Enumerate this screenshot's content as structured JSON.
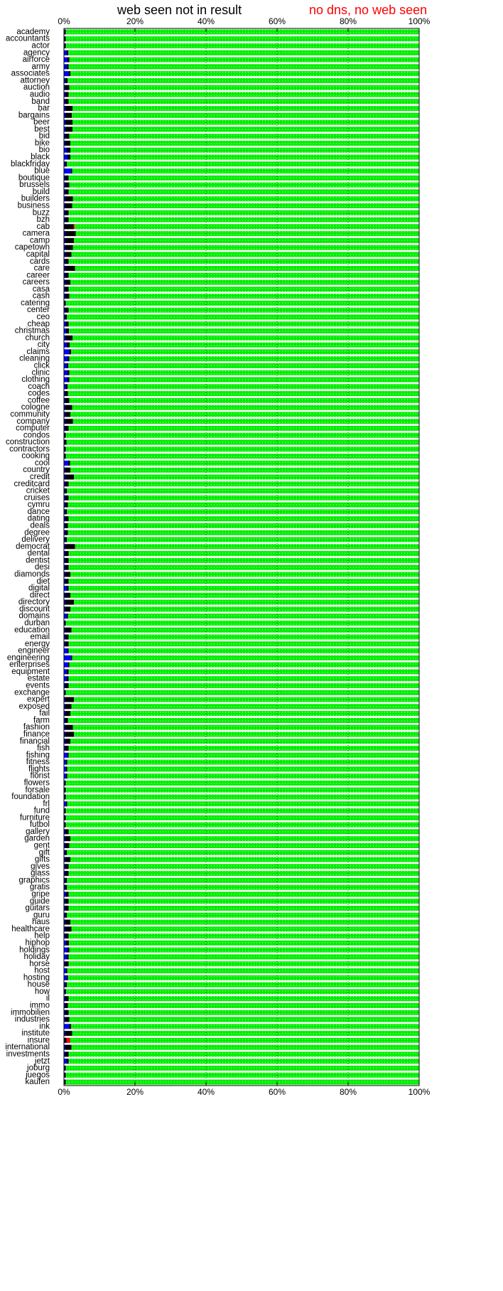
{
  "chart_data": {
    "type": "stacked-barh",
    "categories": [
      "academy",
      "accountants",
      "actor",
      "agency",
      "airforce",
      "army",
      "associates",
      "attorney",
      "auction",
      "audio",
      "band",
      "bar",
      "bargains",
      "beer",
      "best",
      "bid",
      "bike",
      "bio",
      "black",
      "blackfriday",
      "blue",
      "boutique",
      "brussels",
      "build",
      "builders",
      "business",
      "buzz",
      "bzh",
      "cab",
      "camera",
      "camp",
      "capetown",
      "capital",
      "cards",
      "care",
      "career",
      "careers",
      "casa",
      "cash",
      "catering",
      "center",
      "ceo",
      "cheap",
      "christmas",
      "church",
      "city",
      "claims",
      "cleaning",
      "click",
      "clinic",
      "clothing",
      "coach",
      "codes",
      "coffee",
      "cologne",
      "community",
      "company",
      "computer",
      "condos",
      "construction",
      "contractors",
      "cooking",
      "cool",
      "country",
      "credit",
      "creditcard",
      "cricket",
      "cruises",
      "cymru",
      "dance",
      "dating",
      "deals",
      "degree",
      "delivery",
      "democrat",
      "dental",
      "dentist",
      "desi",
      "diamonds",
      "diet",
      "digital",
      "direct",
      "directory",
      "discount",
      "domains",
      "durban",
      "education",
      "email",
      "energy",
      "engineer",
      "engineering",
      "enterprises",
      "equipment",
      "estate",
      "events",
      "exchange",
      "expert",
      "exposed",
      "fail",
      "farm",
      "fashion",
      "finance",
      "financial",
      "fish",
      "fishing",
      "fitness",
      "flights",
      "florist",
      "flowers",
      "forsale",
      "foundation",
      "frl",
      "fund",
      "furniture",
      "futbol",
      "gallery",
      "garden",
      "gent",
      "gift",
      "gifts",
      "gives",
      "glass",
      "graphics",
      "gratis",
      "gripe",
      "guide",
      "guitars",
      "guru",
      "haus",
      "healthcare",
      "help",
      "hiphop",
      "holdings",
      "holiday",
      "horse",
      "host",
      "hosting",
      "house",
      "how",
      "il",
      "immo",
      "immobilien",
      "industries",
      "ink",
      "institute",
      "insure",
      "international",
      "investments",
      "jetzt",
      "joburg",
      "juegos",
      "kaufen"
    ],
    "series": [
      {
        "color": "#0000ff",
        "values": [
          0.2,
          0.2,
          0.2,
          0.8,
          1,
          0.8,
          1.4,
          0.4,
          0.3,
          0.3,
          0.3,
          0.4,
          0.4,
          0.4,
          0.4,
          0.3,
          0.3,
          0.8,
          1,
          0.3,
          2,
          0.3,
          0.3,
          0.3,
          0.3,
          0.3,
          0.3,
          0.3,
          0.2,
          0.3,
          0.3,
          0.3,
          0.3,
          0.3,
          0.3,
          0.3,
          0.3,
          0.3,
          0.3,
          0.2,
          0.3,
          0.3,
          0.5,
          0.6,
          0.4,
          0.8,
          1.5,
          1,
          0.8,
          1,
          1,
          0.5,
          0.3,
          0.3,
          0.3,
          0.3,
          0.3,
          0.3,
          0.2,
          0.2,
          0.2,
          0.2,
          1.2,
          0.3,
          0.3,
          0.3,
          0.3,
          0.3,
          0.3,
          0.3,
          0.3,
          0.3,
          0.3,
          0.3,
          0.3,
          0.3,
          0.3,
          0.3,
          0.3,
          0.3,
          0.8,
          0.3,
          0.3,
          0.3,
          0.8,
          0.2,
          0.3,
          0.3,
          0.3,
          1,
          2,
          1.2,
          0.8,
          0.8,
          0.3,
          0.2,
          0.3,
          0.3,
          0.3,
          0.3,
          0.3,
          0.3,
          0.3,
          0.3,
          1,
          0.6,
          0.6,
          0.6,
          0.2,
          0.2,
          0.2,
          0.6,
          0.2,
          0.2,
          0.2,
          0.3,
          0.3,
          0.3,
          0.3,
          0.3,
          0.3,
          0.3,
          0.3,
          0.3,
          0.5,
          0.3,
          0.3,
          0.3,
          0.3,
          0.3,
          0.3,
          0.6,
          1,
          0.8,
          0.3,
          0.6,
          0.8,
          0.3,
          0.3,
          0.3,
          0.3,
          0.3,
          0.3,
          1.5,
          0.3,
          0.2,
          0.3,
          0.3,
          0.8,
          0.2,
          0.2,
          0.2
        ]
      },
      {
        "name": "web seen not in result",
        "color": "#000000",
        "values": [
          0.3,
          0.3,
          0.3,
          0.4,
          0.5,
          0.5,
          0.4,
          0.6,
          1.2,
          1,
          1,
          2,
          1.8,
          2,
          2,
          1.2,
          1.5,
          1,
          0.8,
          0.5,
          0.3,
          1,
          1.2,
          1,
          2.2,
          2,
          1,
          1,
          2.5,
          3,
          2.5,
          2.2,
          1.8,
          1,
          2.8,
          1,
          1.5,
          1,
          1.2,
          0.3,
          1,
          0.5,
          0.8,
          0.8,
          2,
          0.8,
          0.5,
          0.5,
          0.4,
          0.5,
          0.5,
          0.5,
          0.8,
          1.2,
          2,
          1.5,
          2.2,
          1,
          0.3,
          0.5,
          0.3,
          0.3,
          0.5,
          1.5,
          2.5,
          1,
          0.5,
          1,
          0.8,
          0.5,
          1,
          0.8,
          0.8,
          0.5,
          2.8,
          1,
          1,
          1,
          1.5,
          1,
          0.5,
          1.5,
          2.5,
          1.5,
          0.3,
          0.3,
          1.8,
          1,
          1,
          0.3,
          0.3,
          0.3,
          0.5,
          0.5,
          1,
          0.3,
          2.5,
          1.8,
          1.5,
          0.8,
          2.2,
          2.5,
          1.5,
          1,
          0.3,
          0.3,
          0.3,
          0.3,
          0.3,
          0.3,
          0.3,
          0.3,
          0.3,
          0.3,
          0.3,
          1,
          1.5,
          1.2,
          0.5,
          1.5,
          1,
          1,
          0.5,
          0.5,
          0.8,
          1,
          1,
          0.5,
          1.5,
          1.8,
          1,
          0.8,
          0.5,
          0.5,
          1,
          0.3,
          0.3,
          0.5,
          0.3,
          1,
          0.8,
          1,
          1.2,
          0.5,
          2,
          0.5,
          1.8,
          1,
          0.5,
          0.3,
          0.3,
          0.3
        ]
      },
      {
        "name": "no dns, no web seen",
        "color": "#ff0000",
        "values": [
          0,
          0,
          0,
          0,
          0,
          0,
          0,
          0,
          0,
          0,
          0,
          0,
          0,
          0,
          0,
          0,
          0,
          0,
          0,
          0,
          0,
          0,
          0,
          0,
          0,
          0,
          0,
          0,
          0.3,
          0,
          0,
          0,
          0,
          0,
          0,
          0,
          0,
          0,
          0,
          0,
          0,
          0,
          0,
          0,
          0,
          0,
          0,
          0,
          0,
          0,
          0,
          0,
          0,
          0,
          0,
          0,
          0,
          0,
          0,
          0,
          0,
          0,
          0,
          0,
          0,
          0,
          0,
          0,
          0,
          0,
          0,
          0,
          0,
          0,
          0,
          0,
          0,
          0,
          0,
          0,
          0,
          0,
          0,
          0,
          0,
          0,
          0,
          0,
          0,
          0,
          0,
          0,
          0,
          0,
          0,
          0,
          0,
          0,
          0,
          0,
          0,
          0,
          0,
          0,
          0,
          0,
          0,
          0,
          0,
          0,
          0,
          0,
          0,
          0,
          0,
          0,
          0,
          0,
          0,
          0,
          0,
          0,
          0,
          0,
          0,
          0,
          0,
          0,
          0,
          0,
          0,
          0,
          0,
          0,
          0,
          0,
          0,
          0,
          0,
          0,
          0,
          0,
          0,
          0,
          0,
          1,
          0,
          0,
          0,
          0,
          0,
          0
        ]
      },
      {
        "color": "#00ee00",
        "values": [
          99.5,
          99.5,
          99.5,
          98.8,
          98.5,
          98.7,
          98.2,
          99,
          98.5,
          98.7,
          98.7,
          97.6,
          97.8,
          97.6,
          97.6,
          98.5,
          98.2,
          98.2,
          98.2,
          99.2,
          97.7,
          98.7,
          98.5,
          98.7,
          97.5,
          97.7,
          98.7,
          98.7,
          97,
          96.7,
          97.2,
          97.5,
          97.9,
          98.7,
          96.9,
          98.7,
          98.2,
          98.7,
          98.5,
          99.5,
          98.7,
          99.2,
          98.7,
          98.6,
          97.6,
          98.4,
          98,
          98.5,
          98.8,
          98.5,
          98.5,
          99,
          98.9,
          98.5,
          97.7,
          98.2,
          97.5,
          98.7,
          99.5,
          99.3,
          99.5,
          99.5,
          98.3,
          98.2,
          97.2,
          98.7,
          99.2,
          98.7,
          98.9,
          99.2,
          98.7,
          98.9,
          98.9,
          99.2,
          96.9,
          98.7,
          98.7,
          98.7,
          98.2,
          98.7,
          98.7,
          98.2,
          97.2,
          98.2,
          98.9,
          99.5,
          97.9,
          98.7,
          98.7,
          98.7,
          97.7,
          98.5,
          98.7,
          98.7,
          98.7,
          99.5,
          97.2,
          97.9,
          98.2,
          98.9,
          97.5,
          97.2,
          98.2,
          98.7,
          98.7,
          99.1,
          99.1,
          99.1,
          99.5,
          99.5,
          99.5,
          99.1,
          99.5,
          99.5,
          99.5,
          98.7,
          98.2,
          98.5,
          99.2,
          98.2,
          98.7,
          98.7,
          99.2,
          99.2,
          98.7,
          98.7,
          98.7,
          99.2,
          98.2,
          97.9,
          98.7,
          98.6,
          98.5,
          98.7,
          98.7,
          99.1,
          98.9,
          99.2,
          99.4,
          98.7,
          98.9,
          98.7,
          98.5,
          98,
          97.7,
          98.3,
          97.9,
          98.7,
          98.7,
          99.5,
          99.5,
          99.5
        ]
      }
    ],
    "xlim": [
      0,
      100
    ],
    "xticks": [
      {
        "value": 0,
        "label": "0%"
      },
      {
        "value": 20,
        "label": "20%"
      },
      {
        "value": 40,
        "label": "40%"
      },
      {
        "value": 60,
        "label": "60%"
      },
      {
        "value": 80,
        "label": "80%"
      },
      {
        "value": 100,
        "label": "100%"
      }
    ],
    "grid": true
  }
}
